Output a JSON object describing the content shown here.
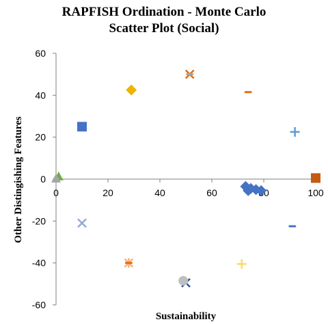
{
  "chart_data": {
    "type": "scatter",
    "title_line1": "RAPFISH Ordination - Monte Carlo",
    "title_line2": "Scatter Plot (Social)",
    "xlabel": "Sustainability",
    "ylabel": "Other Distingishing Features",
    "xlim": [
      0,
      100
    ],
    "ylim": [
      -60,
      60
    ],
    "xticks": [
      0,
      20,
      40,
      60,
      80,
      100
    ],
    "yticks": [
      -60,
      -40,
      -20,
      0,
      20,
      40,
      60
    ],
    "grid": false,
    "series": [
      {
        "marker": "square",
        "color": "#4472c4",
        "points": [
          [
            10,
            25
          ]
        ]
      },
      {
        "marker": "diamond",
        "color": "#f0b400",
        "points": [
          [
            29,
            42.5
          ]
        ]
      },
      {
        "marker": "x",
        "color": "#e46c0a",
        "points": [
          [
            51.5,
            50
          ]
        ]
      },
      {
        "marker": "dash",
        "color": "#a5a5a5",
        "points": [
          [
            51.5,
            50
          ]
        ]
      },
      {
        "marker": "dash",
        "color": "#e46c0a",
        "points": [
          [
            74,
            41.5
          ]
        ]
      },
      {
        "marker": "plus",
        "color": "#5b9bd5",
        "points": [
          [
            92,
            22.5
          ]
        ]
      },
      {
        "marker": "triangle",
        "color": "#70ad47",
        "points": [
          [
            1,
            1
          ]
        ]
      },
      {
        "marker": "triangle",
        "color": "#a5a5a5",
        "points": [
          [
            0,
            0
          ]
        ]
      },
      {
        "marker": "square",
        "color": "#548235",
        "points": [
          [
            100,
            0.5
          ]
        ]
      },
      {
        "marker": "square",
        "color": "#c55a11",
        "points": [
          [
            100,
            0.5
          ]
        ]
      },
      {
        "marker": "diamond",
        "color": "#4472c4",
        "points": [
          [
            73,
            -3.5
          ],
          [
            74,
            -5.5
          ],
          [
            75,
            -4.5
          ],
          [
            77,
            -5
          ],
          [
            79,
            -5.5
          ]
        ]
      },
      {
        "marker": "x",
        "color": "#8faadc",
        "points": [
          [
            10,
            -21
          ]
        ]
      },
      {
        "marker": "dash",
        "color": "#4472c4",
        "points": [
          [
            91,
            -22.5
          ]
        ]
      },
      {
        "marker": "asterisk",
        "color": "#f4b183",
        "points": [
          [
            28,
            -40
          ]
        ]
      },
      {
        "marker": "dash",
        "color": "#e46c0a",
        "points": [
          [
            28,
            -40
          ]
        ]
      },
      {
        "marker": "plus",
        "color": "#ffd966",
        "points": [
          [
            71.5,
            -40.5
          ]
        ]
      },
      {
        "marker": "x",
        "color": "#2f5597",
        "points": [
          [
            50,
            -49.5
          ]
        ]
      },
      {
        "marker": "circle",
        "color": "#bfbfbf",
        "points": [
          [
            49,
            -48.5
          ]
        ]
      }
    ]
  }
}
